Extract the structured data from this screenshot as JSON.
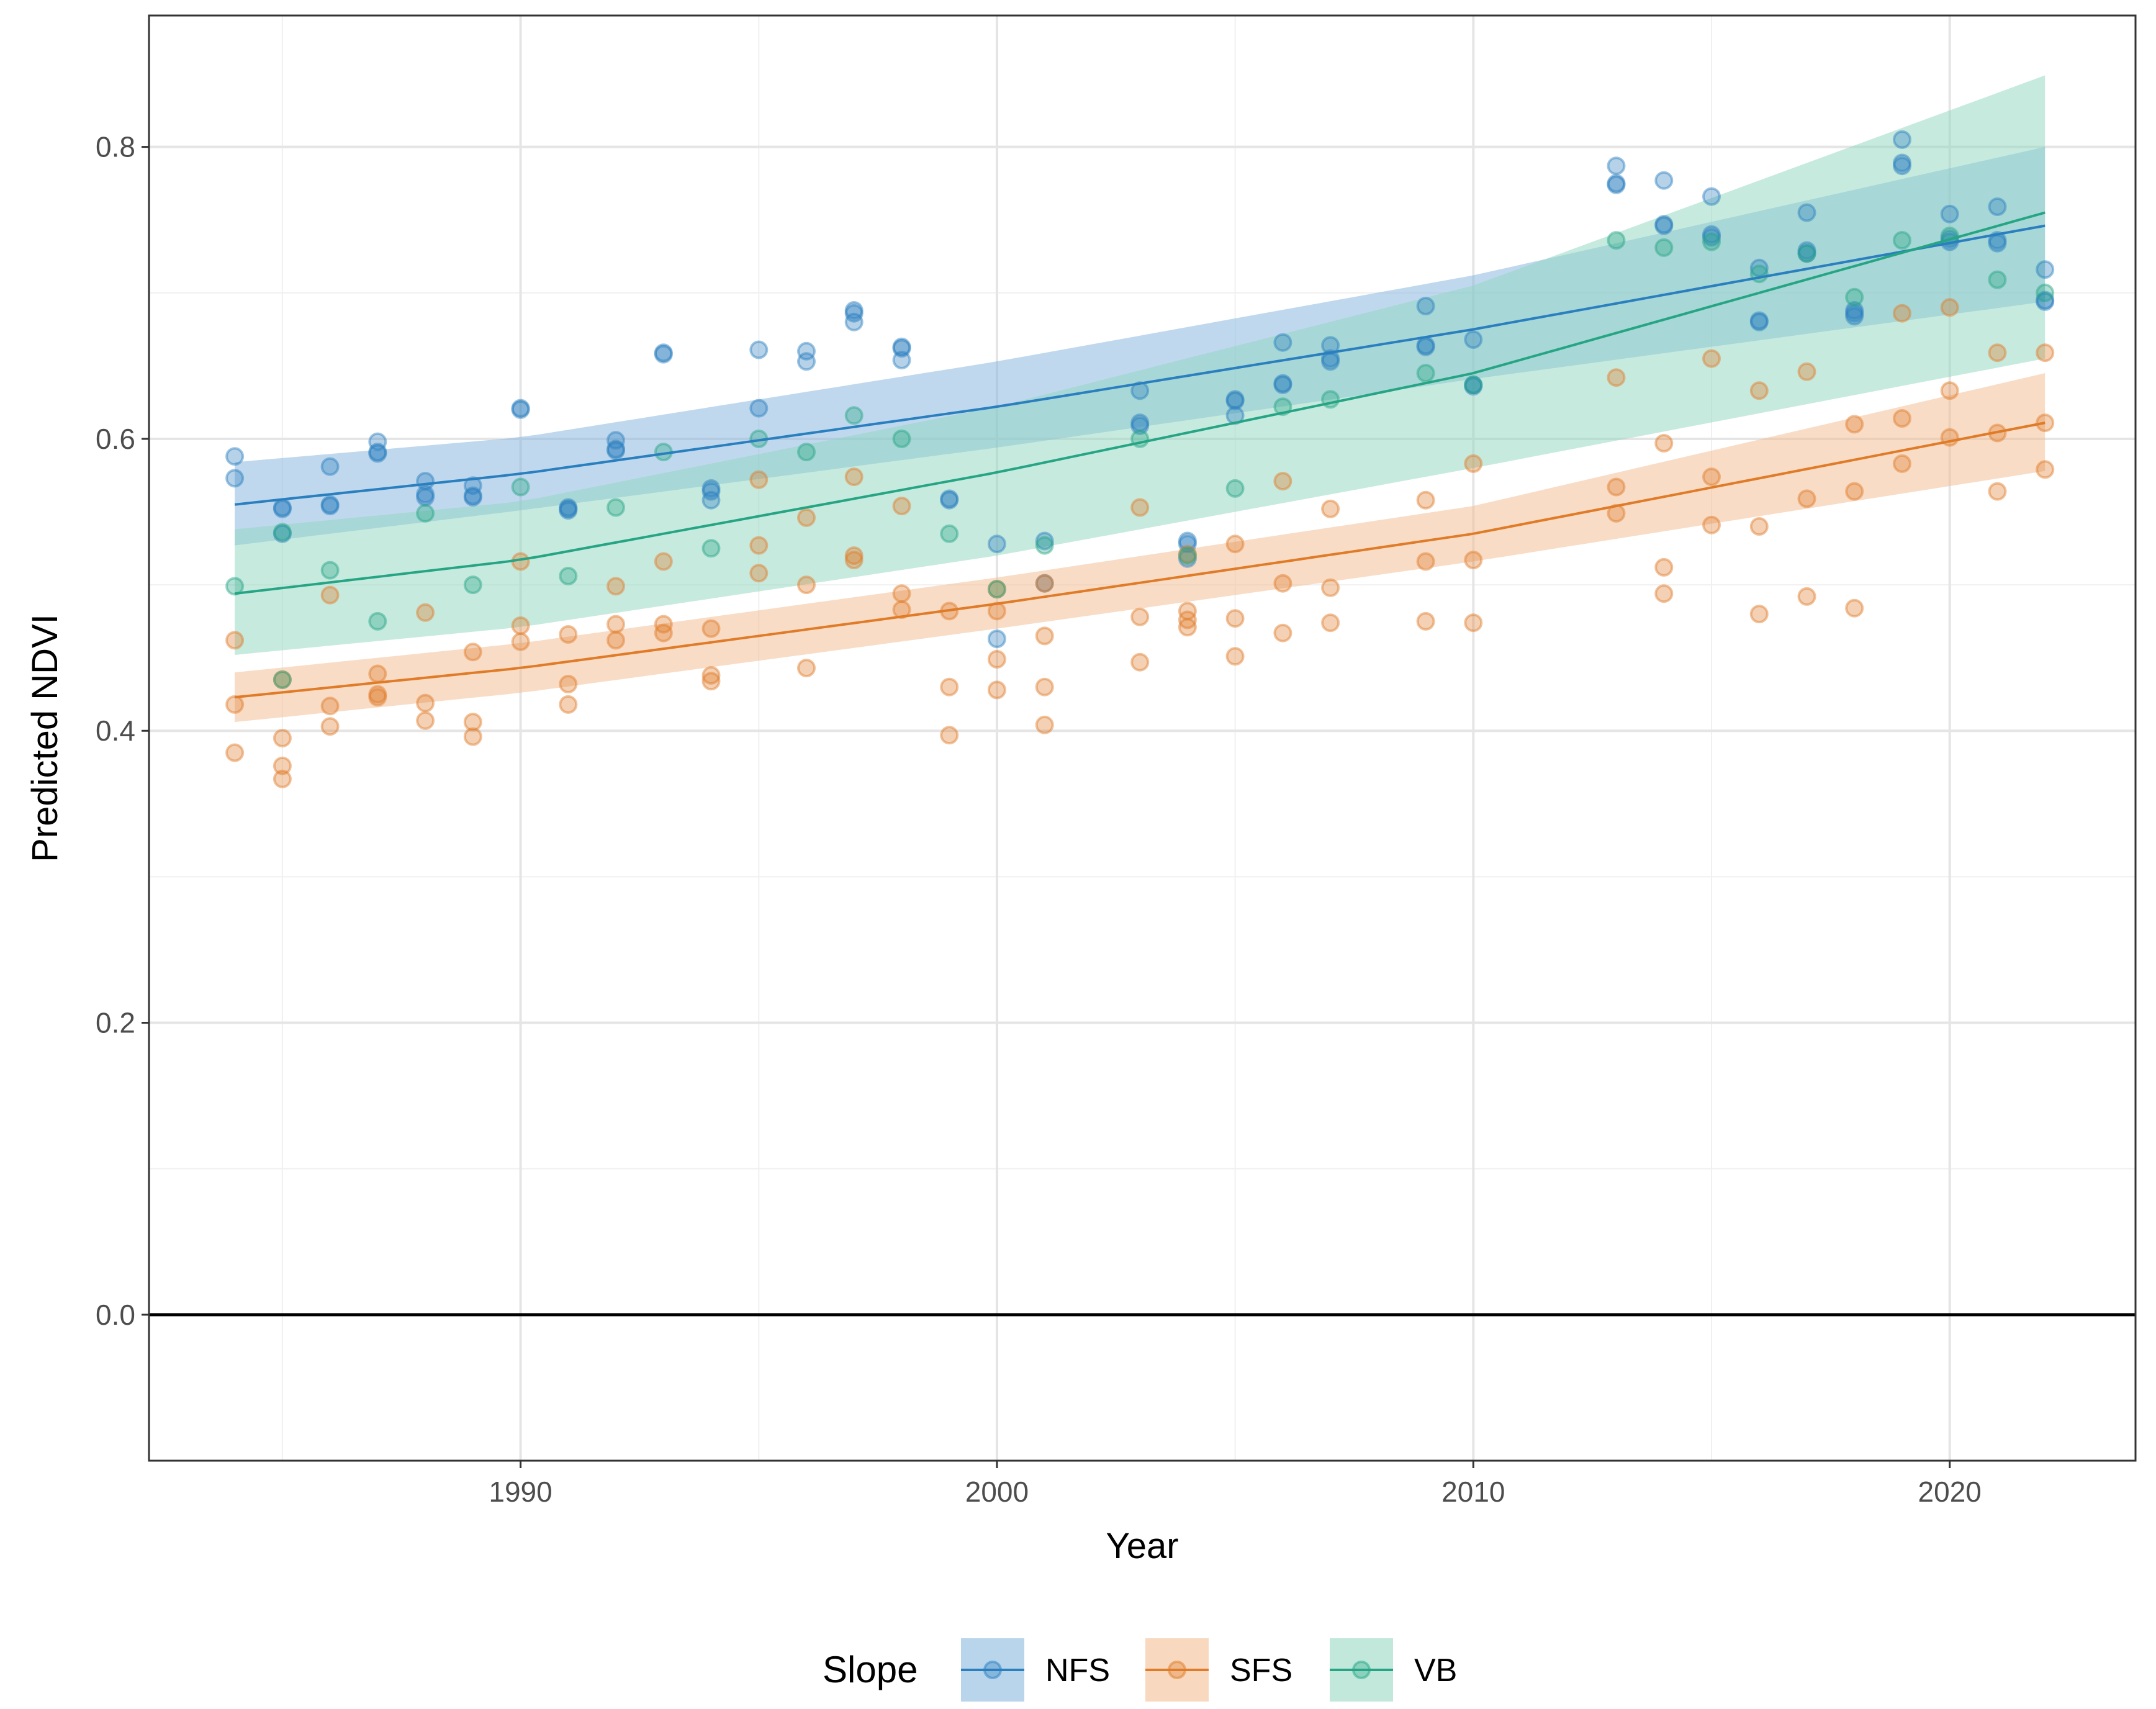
{
  "chart_data": {
    "type": "scatter",
    "title": "",
    "xlabel": "Year",
    "ylabel": "Predicted NDVI",
    "xlim": [
      1982.2,
      2023.9
    ],
    "ylim": [
      -0.1,
      0.89
    ],
    "x_ticks": [
      1990,
      2000,
      2010,
      2020
    ],
    "x_tick_labels": [
      "1990",
      "2000",
      "2010",
      "2020"
    ],
    "y_ticks": [
      0.0,
      0.2,
      0.4,
      0.6,
      0.8
    ],
    "y_tick_labels": [
      "0.0",
      "0.2",
      "0.4",
      "0.6",
      "0.8"
    ],
    "x_minor": [
      1985,
      1995,
      2005,
      2015
    ],
    "y_minor": [
      0.1,
      0.3,
      0.5,
      0.7
    ],
    "hline": 0.0,
    "grid": true,
    "legend": {
      "title": "Slope",
      "position": "bottom"
    },
    "series": [
      {
        "name": "NFS",
        "color": "#2A7FBF",
        "band_color": "#7FB2DC",
        "fit_x": [
          1984,
          1990,
          2000,
          2010,
          2022
        ],
        "fit_y": [
          0.555,
          0.576,
          0.622,
          0.675,
          0.746
        ],
        "band_lower": [
          0.527,
          0.551,
          0.594,
          0.641,
          0.694
        ],
        "band_upper": [
          0.584,
          0.601,
          0.653,
          0.712,
          0.8
        ],
        "points": [
          [
            1984,
            0.588
          ],
          [
            1984,
            0.573
          ],
          [
            1985,
            0.553
          ],
          [
            1985,
            0.552
          ],
          [
            1985,
            0.535
          ],
          [
            1986,
            0.581
          ],
          [
            1986,
            0.555
          ],
          [
            1986,
            0.554
          ],
          [
            1987,
            0.598
          ],
          [
            1987,
            0.591
          ],
          [
            1987,
            0.59
          ],
          [
            1988,
            0.571
          ],
          [
            1988,
            0.562
          ],
          [
            1988,
            0.56
          ],
          [
            1989,
            0.568
          ],
          [
            1989,
            0.561
          ],
          [
            1989,
            0.56
          ],
          [
            1990,
            0.621
          ],
          [
            1990,
            0.62
          ],
          [
            1991,
            0.553
          ],
          [
            1991,
            0.552
          ],
          [
            1991,
            0.551
          ],
          [
            1992,
            0.599
          ],
          [
            1992,
            0.593
          ],
          [
            1992,
            0.592
          ],
          [
            1993,
            0.659
          ],
          [
            1993,
            0.658
          ],
          [
            1994,
            0.566
          ],
          [
            1994,
            0.564
          ],
          [
            1994,
            0.558
          ],
          [
            1995,
            0.661
          ],
          [
            1995,
            0.621
          ],
          [
            1996,
            0.66
          ],
          [
            1996,
            0.653
          ],
          [
            1997,
            0.688
          ],
          [
            1997,
            0.686
          ],
          [
            1997,
            0.68
          ],
          [
            1998,
            0.663
          ],
          [
            1998,
            0.662
          ],
          [
            1998,
            0.654
          ],
          [
            1999,
            0.559
          ],
          [
            1999,
            0.558
          ],
          [
            2000,
            0.528
          ],
          [
            2000,
            0.463
          ],
          [
            2001,
            0.53
          ],
          [
            2001,
            0.501
          ],
          [
            2003,
            0.633
          ],
          [
            2003,
            0.611
          ],
          [
            2003,
            0.609
          ],
          [
            2004,
            0.53
          ],
          [
            2004,
            0.528
          ],
          [
            2004,
            0.518
          ],
          [
            2005,
            0.627
          ],
          [
            2005,
            0.626
          ],
          [
            2005,
            0.616
          ],
          [
            2006,
            0.666
          ],
          [
            2006,
            0.638
          ],
          [
            2006,
            0.637
          ],
          [
            2007,
            0.664
          ],
          [
            2007,
            0.655
          ],
          [
            2007,
            0.653
          ],
          [
            2009,
            0.691
          ],
          [
            2009,
            0.664
          ],
          [
            2009,
            0.663
          ],
          [
            2010,
            0.668
          ],
          [
            2010,
            0.637
          ],
          [
            2010,
            0.636
          ],
          [
            2013,
            0.787
          ],
          [
            2013,
            0.775
          ],
          [
            2013,
            0.774
          ],
          [
            2014,
            0.777
          ],
          [
            2014,
            0.747
          ],
          [
            2014,
            0.746
          ],
          [
            2015,
            0.766
          ],
          [
            2015,
            0.74
          ],
          [
            2015,
            0.738
          ],
          [
            2016,
            0.717
          ],
          [
            2016,
            0.681
          ],
          [
            2016,
            0.68
          ],
          [
            2017,
            0.755
          ],
          [
            2017,
            0.729
          ],
          [
            2017,
            0.727
          ],
          [
            2018,
            0.688
          ],
          [
            2018,
            0.686
          ],
          [
            2018,
            0.684
          ],
          [
            2019,
            0.805
          ],
          [
            2019,
            0.789
          ],
          [
            2019,
            0.787
          ],
          [
            2020,
            0.754
          ],
          [
            2020,
            0.737
          ],
          [
            2020,
            0.735
          ],
          [
            2021,
            0.759
          ],
          [
            2021,
            0.736
          ],
          [
            2021,
            0.734
          ],
          [
            2022,
            0.716
          ],
          [
            2022,
            0.695
          ],
          [
            2022,
            0.694
          ]
        ]
      },
      {
        "name": "SFS",
        "color": "#E07B28",
        "band_color": "#F2B98D",
        "fit_x": [
          1984,
          1990,
          2000,
          2010,
          2022
        ],
        "fit_y": [
          0.423,
          0.443,
          0.487,
          0.535,
          0.611
        ],
        "band_lower": [
          0.406,
          0.426,
          0.47,
          0.516,
          0.578
        ],
        "band_upper": [
          0.44,
          0.46,
          0.505,
          0.554,
          0.645
        ],
        "points": [
          [
            1984,
            0.462
          ],
          [
            1984,
            0.418
          ],
          [
            1984,
            0.385
          ],
          [
            1985,
            0.435
          ],
          [
            1985,
            0.395
          ],
          [
            1985,
            0.376
          ],
          [
            1985,
            0.367
          ],
          [
            1986,
            0.493
          ],
          [
            1986,
            0.417
          ],
          [
            1986,
            0.403
          ],
          [
            1987,
            0.439
          ],
          [
            1987,
            0.425
          ],
          [
            1987,
            0.423
          ],
          [
            1988,
            0.481
          ],
          [
            1988,
            0.419
          ],
          [
            1988,
            0.407
          ],
          [
            1989,
            0.454
          ],
          [
            1989,
            0.406
          ],
          [
            1989,
            0.396
          ],
          [
            1990,
            0.516
          ],
          [
            1990,
            0.472
          ],
          [
            1990,
            0.461
          ],
          [
            1991,
            0.466
          ],
          [
            1991,
            0.432
          ],
          [
            1991,
            0.418
          ],
          [
            1992,
            0.499
          ],
          [
            1992,
            0.473
          ],
          [
            1992,
            0.462
          ],
          [
            1993,
            0.516
          ],
          [
            1993,
            0.473
          ],
          [
            1993,
            0.467
          ],
          [
            1994,
            0.47
          ],
          [
            1994,
            0.438
          ],
          [
            1994,
            0.434
          ],
          [
            1995,
            0.572
          ],
          [
            1995,
            0.527
          ],
          [
            1995,
            0.508
          ],
          [
            1996,
            0.546
          ],
          [
            1996,
            0.5
          ],
          [
            1996,
            0.443
          ],
          [
            1997,
            0.574
          ],
          [
            1997,
            0.52
          ],
          [
            1997,
            0.517
          ],
          [
            1998,
            0.554
          ],
          [
            1998,
            0.494
          ],
          [
            1998,
            0.483
          ],
          [
            1999,
            0.482
          ],
          [
            1999,
            0.43
          ],
          [
            1999,
            0.397
          ],
          [
            2000,
            0.497
          ],
          [
            2000,
            0.482
          ],
          [
            2000,
            0.449
          ],
          [
            2000,
            0.428
          ],
          [
            2001,
            0.501
          ],
          [
            2001,
            0.465
          ],
          [
            2001,
            0.43
          ],
          [
            2001,
            0.404
          ],
          [
            2003,
            0.553
          ],
          [
            2003,
            0.478
          ],
          [
            2003,
            0.447
          ],
          [
            2004,
            0.521
          ],
          [
            2004,
            0.482
          ],
          [
            2004,
            0.476
          ],
          [
            2004,
            0.471
          ],
          [
            2005,
            0.528
          ],
          [
            2005,
            0.477
          ],
          [
            2005,
            0.451
          ],
          [
            2006,
            0.571
          ],
          [
            2006,
            0.501
          ],
          [
            2006,
            0.467
          ],
          [
            2007,
            0.552
          ],
          [
            2007,
            0.498
          ],
          [
            2007,
            0.474
          ],
          [
            2009,
            0.558
          ],
          [
            2009,
            0.516
          ],
          [
            2009,
            0.475
          ],
          [
            2010,
            0.583
          ],
          [
            2010,
            0.517
          ],
          [
            2010,
            0.474
          ],
          [
            2013,
            0.642
          ],
          [
            2013,
            0.567
          ],
          [
            2013,
            0.549
          ],
          [
            2014,
            0.597
          ],
          [
            2014,
            0.512
          ],
          [
            2014,
            0.494
          ],
          [
            2015,
            0.655
          ],
          [
            2015,
            0.574
          ],
          [
            2015,
            0.541
          ],
          [
            2016,
            0.633
          ],
          [
            2016,
            0.54
          ],
          [
            2016,
            0.48
          ],
          [
            2017,
            0.646
          ],
          [
            2017,
            0.559
          ],
          [
            2017,
            0.492
          ],
          [
            2018,
            0.61
          ],
          [
            2018,
            0.564
          ],
          [
            2018,
            0.484
          ],
          [
            2019,
            0.686
          ],
          [
            2019,
            0.614
          ],
          [
            2019,
            0.583
          ],
          [
            2020,
            0.69
          ],
          [
            2020,
            0.633
          ],
          [
            2020,
            0.601
          ],
          [
            2021,
            0.659
          ],
          [
            2021,
            0.604
          ],
          [
            2021,
            0.564
          ],
          [
            2022,
            0.659
          ],
          [
            2022,
            0.611
          ],
          [
            2022,
            0.579
          ]
        ]
      },
      {
        "name": "VB",
        "color": "#26A585",
        "band_color": "#8FD6C0",
        "fit_x": [
          1984,
          1990,
          2000,
          2010,
          2022
        ],
        "fit_y": [
          0.494,
          0.517,
          0.577,
          0.645,
          0.755
        ],
        "band_lower": [
          0.452,
          0.471,
          0.52,
          0.58,
          0.655
        ],
        "band_upper": [
          0.538,
          0.557,
          0.622,
          0.705,
          0.849
        ],
        "points": [
          [
            1984,
            0.499
          ],
          [
            1985,
            0.536
          ],
          [
            1985,
            0.435
          ],
          [
            1986,
            0.51
          ],
          [
            1987,
            0.475
          ],
          [
            1988,
            0.549
          ],
          [
            1989,
            0.5
          ],
          [
            1990,
            0.567
          ],
          [
            1991,
            0.506
          ],
          [
            1992,
            0.553
          ],
          [
            1993,
            0.591
          ],
          [
            1994,
            0.525
          ],
          [
            1995,
            0.6
          ],
          [
            1996,
            0.591
          ],
          [
            1997,
            0.616
          ],
          [
            1998,
            0.6
          ],
          [
            1999,
            0.535
          ],
          [
            2000,
            0.497
          ],
          [
            2001,
            0.527
          ],
          [
            2003,
            0.6
          ],
          [
            2004,
            0.52
          ],
          [
            2005,
            0.566
          ],
          [
            2006,
            0.622
          ],
          [
            2007,
            0.627
          ],
          [
            2009,
            0.645
          ],
          [
            2010,
            0.637
          ],
          [
            2013,
            0.736
          ],
          [
            2014,
            0.731
          ],
          [
            2015,
            0.735
          ],
          [
            2016,
            0.713
          ],
          [
            2017,
            0.727
          ],
          [
            2018,
            0.697
          ],
          [
            2019,
            0.736
          ],
          [
            2020,
            0.739
          ],
          [
            2021,
            0.709
          ],
          [
            2022,
            0.7
          ]
        ]
      }
    ]
  }
}
